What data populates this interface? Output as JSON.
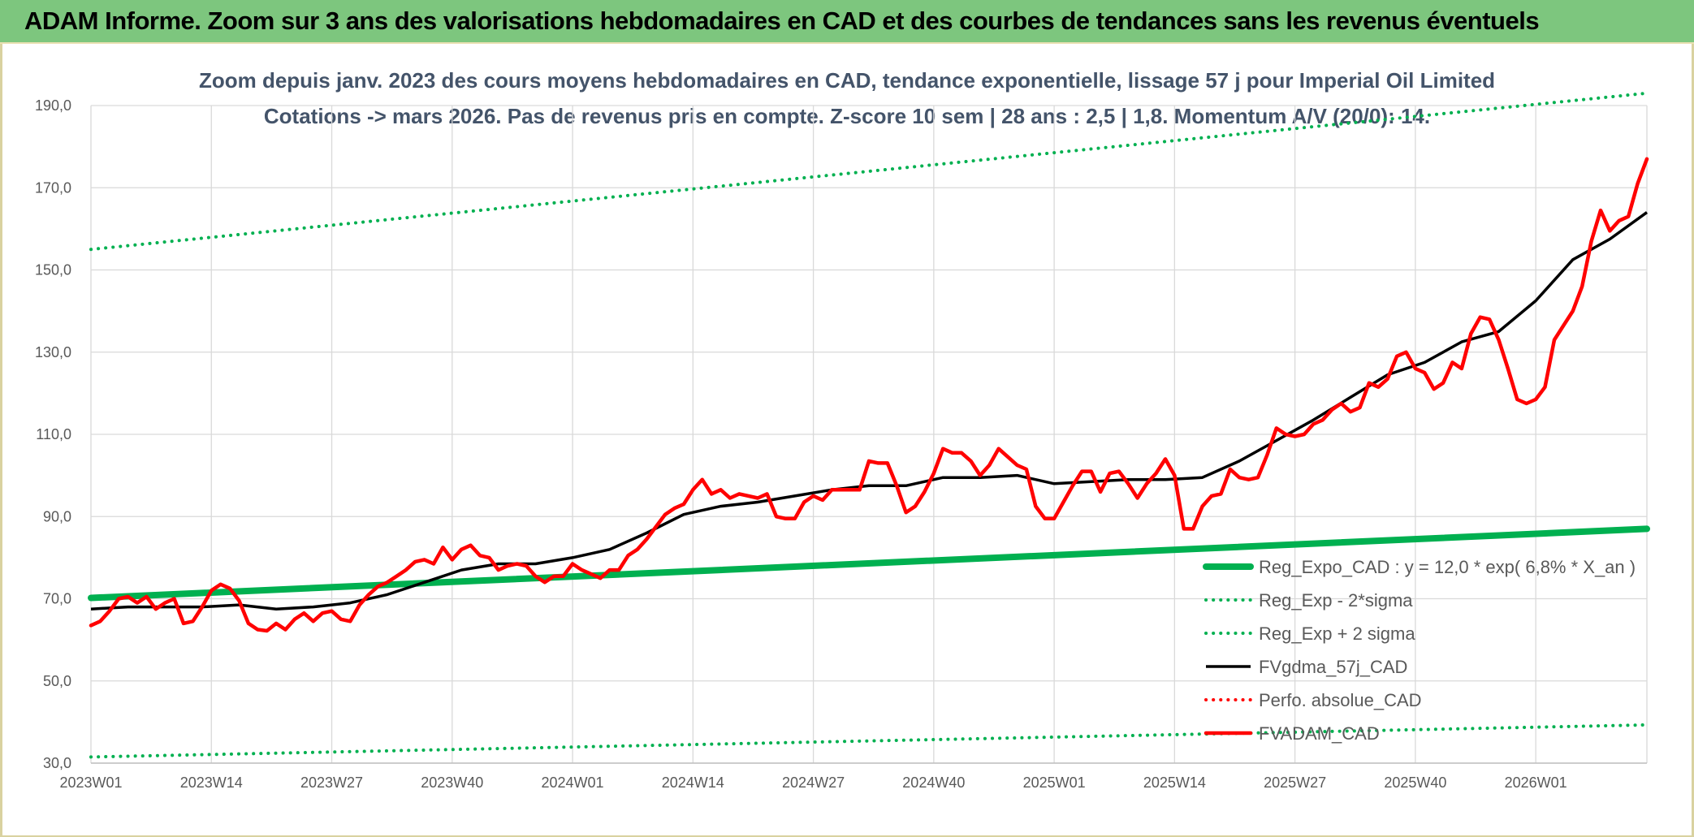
{
  "banner": {
    "title": "ADAM Informe. Zoom sur 3 ans des valorisations hebdomadaires en CAD et des courbes de tendances sans les revenus éventuels"
  },
  "colors": {
    "banner_bg": "#7dc67e",
    "trend": "#00b050",
    "price": "#ff0000",
    "smooth": "#000000",
    "title_text": "#44546a"
  },
  "chart_data": {
    "type": "line",
    "title": "Zoom depuis janv. 2023 des cours moyens hebdomadaires en CAD, tendance exponentielle, lissage 57 j pour Imperial Oil Limited",
    "subtitle": "Cotations -> mars 2026. Pas de revenus pris en compte. Z-score 10 sem | 28 ans : 2,5 | 1,8. Momentum A/V (20/0): 14.",
    "ylim": [
      30,
      190
    ],
    "yticks": [
      "30,0",
      "50,0",
      "70,0",
      "90,0",
      "110,0",
      "130,0",
      "150,0",
      "170,0",
      "190,0"
    ],
    "ytick_values": [
      30,
      50,
      70,
      90,
      110,
      130,
      150,
      170,
      190
    ],
    "xticks": [
      "2023W01",
      "2023W14",
      "2023W27",
      "2023W40",
      "2024W01",
      "2024W14",
      "2024W27",
      "2024W40",
      "2025W01",
      "2025W14",
      "2025W27",
      "2025W40",
      "2026W01"
    ],
    "xtick_weeks": [
      0,
      13,
      26,
      39,
      52,
      65,
      78,
      91,
      104,
      117,
      130,
      143,
      156
    ],
    "x_range_weeks": [
      0,
      168
    ],
    "grid": true,
    "legend_position": "bottom-right",
    "series": [
      {
        "name": "Reg_Expo_CAD : y = 12,0 * exp( 6,8% *  X_an )",
        "style": "thick-solid",
        "color": "#00b050",
        "x": [
          0,
          168
        ],
        "values": [
          70.2,
          87.0
        ]
      },
      {
        "name": "Reg_Exp - 2*sigma",
        "style": "dotted",
        "color": "#00b050",
        "x": [
          0,
          168
        ],
        "values": [
          31.5,
          39.3
        ]
      },
      {
        "name": "Reg_Exp + 2 sigma",
        "style": "dotted",
        "color": "#00b050",
        "x": [
          0,
          168
        ],
        "values": [
          155.0,
          193.0
        ]
      },
      {
        "name": "FVgdma_57j_CAD",
        "style": "solid",
        "color": "#000000",
        "x": [
          0,
          4,
          8,
          12,
          16,
          20,
          24,
          28,
          32,
          36,
          40,
          44,
          48,
          52,
          56,
          60,
          64,
          68,
          72,
          76,
          80,
          84,
          88,
          92,
          96,
          100,
          104,
          108,
          112,
          116,
          120,
          124,
          128,
          132,
          136,
          140,
          144,
          148,
          152,
          156,
          160,
          164,
          168
        ],
        "values": [
          67.5,
          68,
          68,
          68,
          68.5,
          67.5,
          68,
          69,
          71,
          74,
          77,
          78.5,
          78.5,
          80,
          82,
          86,
          90.5,
          92.5,
          93.5,
          95,
          96.5,
          97.5,
          97.5,
          99.5,
          99.5,
          100,
          98,
          98.5,
          99,
          99,
          99.5,
          103.5,
          108.5,
          113.5,
          119,
          124.5,
          127.5,
          132.5,
          135,
          142.5,
          152.5,
          157.5,
          164
        ]
      },
      {
        "name": "Perfo. absolue_CAD",
        "style": "dotted",
        "color": "#ff0000",
        "x": [],
        "values": []
      },
      {
        "name": "FVADAM_CAD",
        "style": "thick-solid",
        "color": "#ff0000",
        "x": [
          0,
          1,
          2,
          3,
          4,
          5,
          6,
          7,
          8,
          9,
          10,
          11,
          12,
          13,
          14,
          15,
          16,
          17,
          18,
          19,
          20,
          21,
          22,
          23,
          24,
          25,
          26,
          27,
          28,
          29,
          30,
          31,
          32,
          33,
          34,
          35,
          36,
          37,
          38,
          39,
          40,
          41,
          42,
          43,
          44,
          45,
          46,
          47,
          48,
          49,
          50,
          51,
          52,
          53,
          54,
          55,
          56,
          57,
          58,
          59,
          60,
          61,
          62,
          63,
          64,
          65,
          66,
          67,
          68,
          69,
          70,
          71,
          72,
          73,
          74,
          75,
          76,
          77,
          78,
          79,
          80,
          81,
          82,
          83,
          84,
          85,
          86,
          87,
          88,
          89,
          90,
          91,
          92,
          93,
          94,
          95,
          96,
          97,
          98,
          99,
          100,
          101,
          102,
          103,
          104,
          105,
          106,
          107,
          108,
          109,
          110,
          111,
          112,
          113,
          114,
          115,
          116,
          117,
          118,
          119,
          120,
          121,
          122,
          123,
          124,
          125,
          126,
          127,
          128,
          129,
          130,
          131,
          132,
          133,
          134,
          135,
          136,
          137,
          138,
          139,
          140,
          141,
          142,
          143,
          144,
          145,
          146,
          147,
          148,
          149,
          150,
          151,
          152,
          153,
          154,
          155,
          156,
          157,
          158,
          159,
          160,
          161,
          162,
          163,
          164,
          165,
          166,
          167,
          168
        ],
        "values": [
          63.5,
          64.5,
          67,
          70,
          70.5,
          69,
          70.5,
          67.5,
          69,
          70,
          64,
          64.5,
          68,
          72,
          73.5,
          72.5,
          69.5,
          64,
          62.5,
          62.2,
          64,
          62.5,
          65,
          66.5,
          64.5,
          66.5,
          67,
          65,
          64.5,
          68.5,
          71,
          73,
          74,
          75.5,
          77,
          79,
          79.5,
          78.5,
          82.5,
          79.5,
          82,
          83,
          80.5,
          80,
          77,
          78,
          78.5,
          78,
          75.5,
          74,
          75.5,
          75.5,
          78.5,
          77,
          76,
          75,
          77,
          77,
          80.5,
          82,
          84.5,
          87.5,
          90.5,
          92,
          93,
          96.5,
          99,
          95.5,
          96.5,
          94.5,
          95.5,
          95,
          94.5,
          95.5,
          90,
          89.5,
          89.5,
          93.5,
          95,
          94,
          96.5,
          96.5,
          96.5,
          96.5,
          103.5,
          103,
          103,
          97.5,
          91,
          92.5,
          96,
          100.5,
          106.5,
          105.5,
          105.5,
          103.5,
          100,
          102.5,
          106.5,
          104.5,
          102.5,
          101.5,
          92.5,
          89.5,
          89.5,
          93.5,
          97.5,
          101,
          101,
          96,
          100.5,
          101,
          98,
          94.5,
          98,
          100.5,
          104,
          100,
          87,
          87,
          92.5,
          95,
          95.5,
          101.5,
          99.5,
          99,
          99.5,
          105,
          111.5,
          110,
          109.5,
          110,
          112.5,
          113.5,
          116,
          117.5,
          115.5,
          116.5,
          122.5,
          121.5,
          123.5,
          129,
          130,
          126,
          125,
          121,
          122.5,
          127.5,
          126,
          134.5,
          138.5,
          138,
          133,
          126,
          118.5,
          117.5,
          118.5,
          121.5,
          133,
          136.5,
          140,
          146,
          157,
          164.5,
          159.5,
          162,
          163,
          171,
          177
        ]
      }
    ]
  }
}
